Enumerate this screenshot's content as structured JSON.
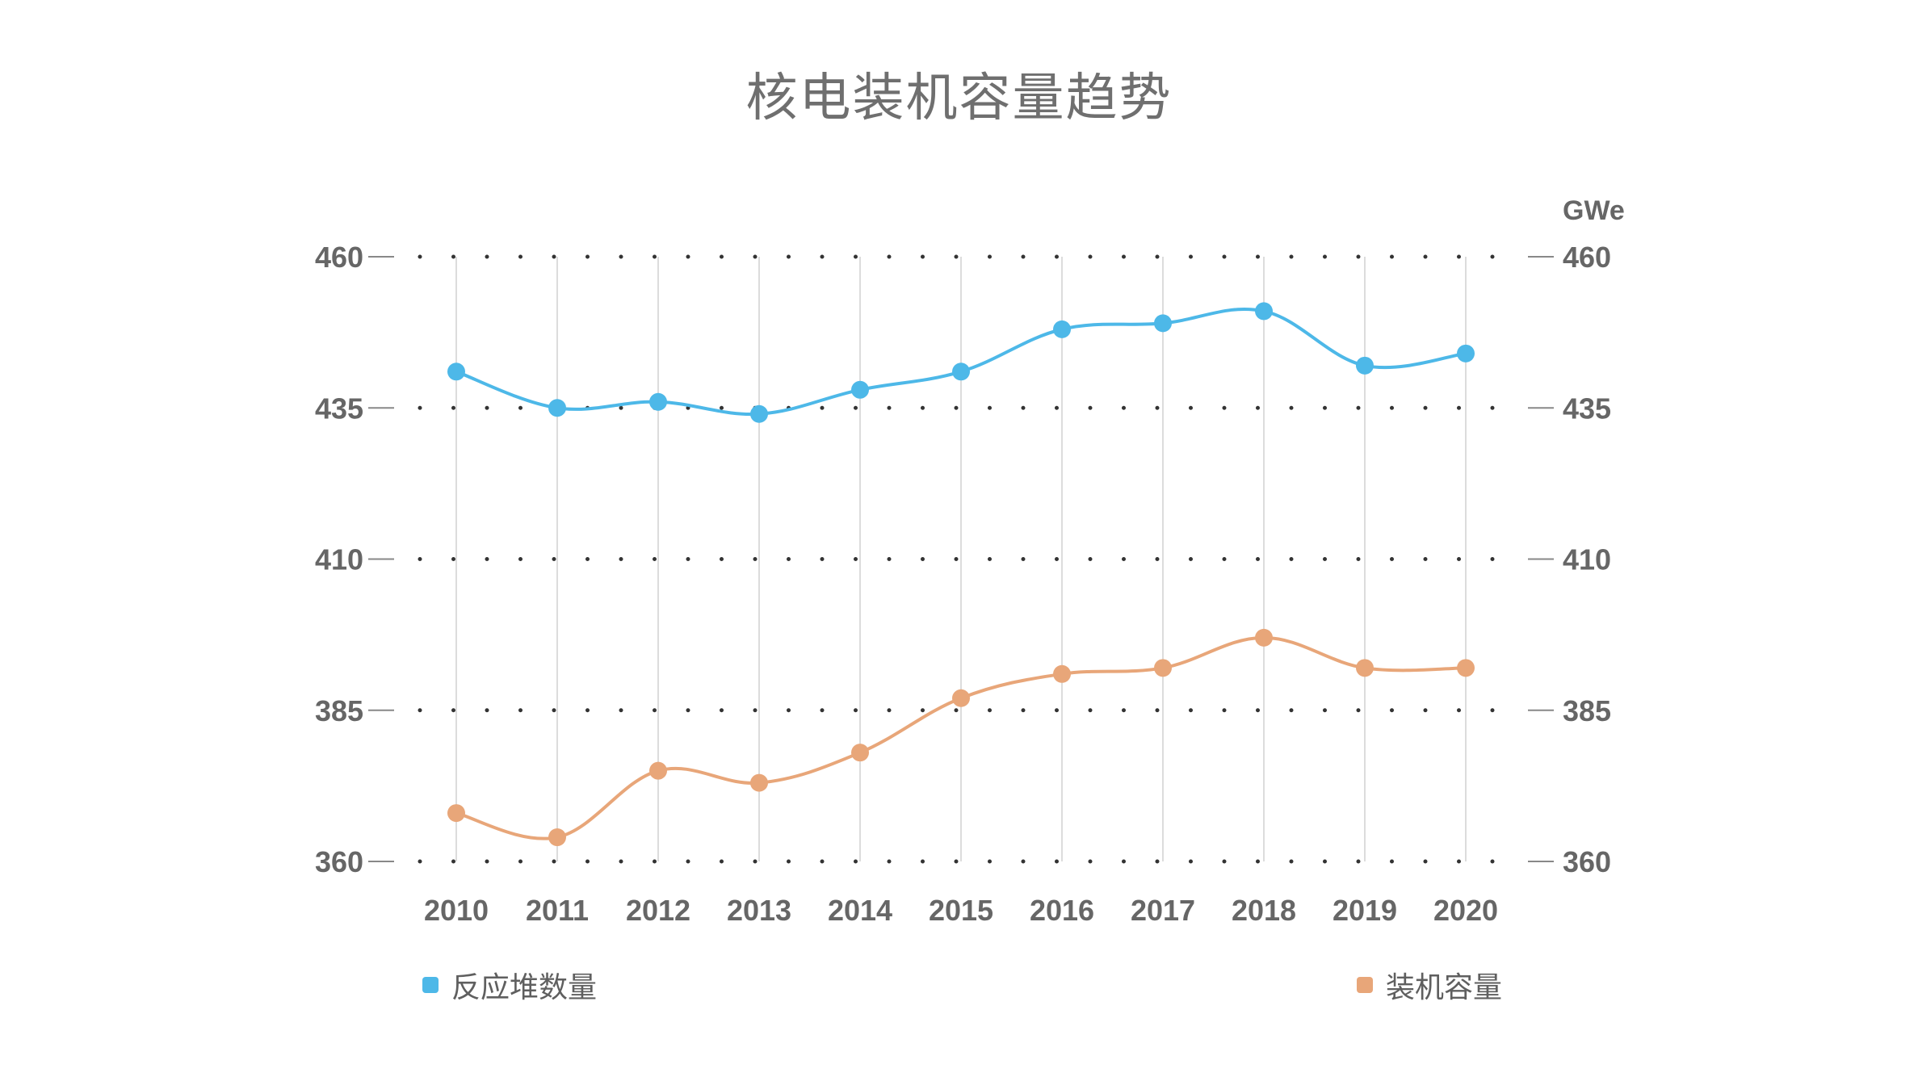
{
  "title": "核电装机容量趋势",
  "chart_data": {
    "type": "line",
    "title": "核电装机容量趋势",
    "x": [
      "2010",
      "2011",
      "2012",
      "2013",
      "2014",
      "2015",
      "2016",
      "2017",
      "2018",
      "2019",
      "2020"
    ],
    "series": [
      {
        "name": "反应堆数量",
        "color": "#4db8e8",
        "axis": "left",
        "values": [
          441,
          435,
          436,
          434,
          438,
          441,
          448,
          449,
          451,
          442,
          444
        ]
      },
      {
        "name": "装机容量",
        "color": "#e8a679",
        "axis": "right",
        "values": [
          368,
          364,
          375,
          373,
          378,
          387,
          391,
          392,
          397,
          392,
          392
        ]
      }
    ],
    "y_left": {
      "ticks": [
        "460",
        "435",
        "410",
        "385",
        "360"
      ],
      "range": [
        360,
        460
      ]
    },
    "y_right": {
      "unit": "GWe",
      "ticks": [
        "460",
        "435",
        "410",
        "385",
        "360"
      ],
      "range": [
        360,
        460
      ]
    },
    "grid": "dotted-horizontal, light vertical lines at categories",
    "legend": [
      "反应堆数量",
      "装机容量"
    ],
    "legend_position": "bottom"
  }
}
